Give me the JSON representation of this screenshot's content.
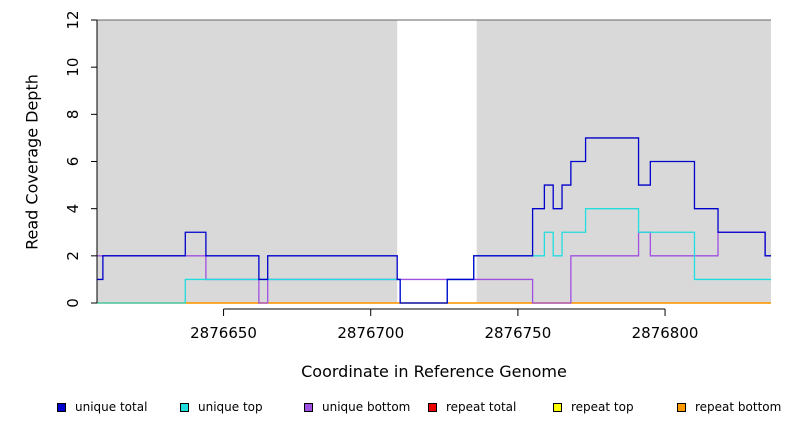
{
  "chart_data": {
    "type": "line",
    "title": "",
    "xlabel": "Coordinate in Reference Genome",
    "ylabel": "Read Coverage Depth",
    "xlim": [
      2876607,
      2876836
    ],
    "ylim": [
      0,
      12
    ],
    "xticks": [
      2876650,
      2876700,
      2876750,
      2876800
    ],
    "yticks": [
      0,
      2,
      4,
      6,
      8,
      10,
      12
    ],
    "shaded_regions": [
      {
        "x": [
          2876607,
          2876709
        ],
        "color": "#d9d9d9"
      },
      {
        "x": [
          2876736,
          2876836
        ],
        "color": "#d9d9d9"
      }
    ],
    "legend_position": "bottom",
    "series": [
      {
        "name": "unique total",
        "color": "#0000cc",
        "x": [
          2876607,
          2876609,
          2876637,
          2876644,
          2876662,
          2876665,
          2876709,
          2876710,
          2876726,
          2876735,
          2876755,
          2876759,
          2876762,
          2876765,
          2876768,
          2876773,
          2876791,
          2876795,
          2876810,
          2876818,
          2876834
        ],
        "y": [
          1,
          2,
          3,
          2,
          1,
          2,
          1,
          0,
          1,
          2,
          4,
          5,
          4,
          5,
          6,
          7,
          5,
          6,
          4,
          3,
          2
        ]
      },
      {
        "name": "unique top",
        "color": "#22dddd",
        "x": [
          2876607,
          2876637,
          2876710,
          2876726,
          2876735,
          2876755,
          2876759,
          2876762,
          2876765,
          2876773,
          2876791,
          2876795,
          2876810,
          2876834
        ],
        "y": [
          0,
          1,
          0,
          1,
          2,
          2,
          3,
          2,
          3,
          4,
          3,
          3,
          1,
          1
        ]
      },
      {
        "name": "unique bottom",
        "color": "#a050e0",
        "x": [
          2876607,
          2876644,
          2876662,
          2876665,
          2876755,
          2876768,
          2876791,
          2876795,
          2876818,
          2876834
        ],
        "y": [
          2,
          1,
          0,
          1,
          0,
          2,
          3,
          2,
          3,
          2
        ]
      },
      {
        "name": "repeat total",
        "color": "#ee0000",
        "x": [
          2876607,
          2876836
        ],
        "y": [
          0,
          0
        ]
      },
      {
        "name": "repeat top",
        "color": "#ffff00",
        "x": [
          2876607,
          2876836
        ],
        "y": [
          0,
          0
        ]
      },
      {
        "name": "repeat bottom",
        "color": "#ff9900",
        "x": [
          2876607,
          2876836
        ],
        "y": [
          0,
          0
        ]
      }
    ]
  }
}
